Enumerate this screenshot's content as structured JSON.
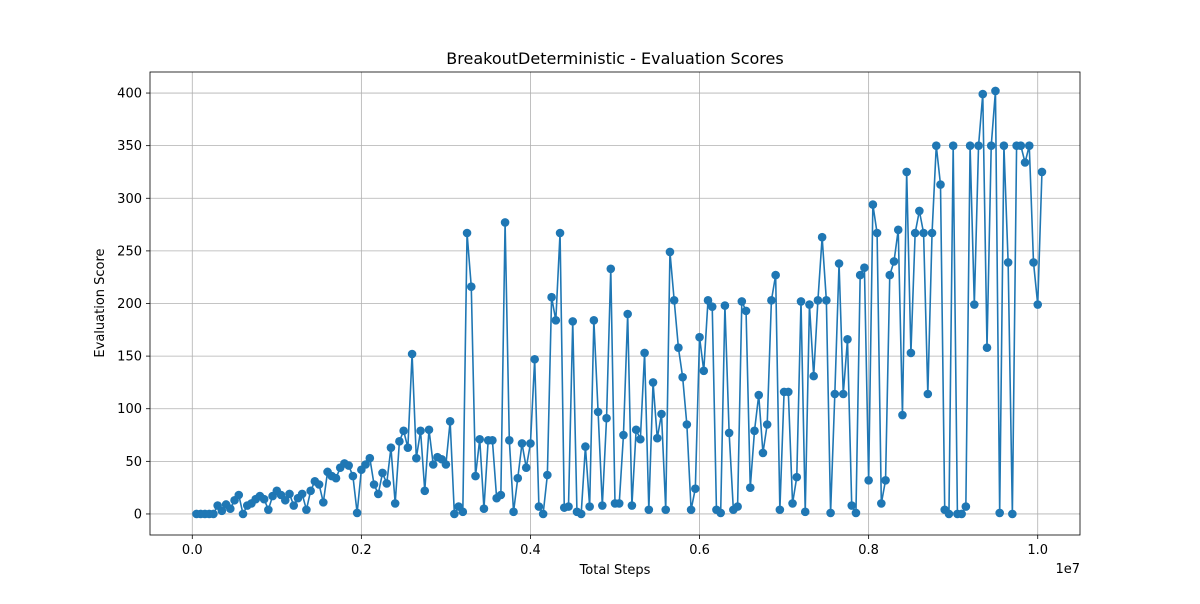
{
  "chart_data": {
    "type": "line",
    "title": "BreakoutDeterministic - Evaluation Scores",
    "xlabel": "Total Steps",
    "ylabel": "Evaluation Score",
    "x_offset_label": "1e7",
    "x_scale": 10000000,
    "xlim": [
      -500000,
      10500000
    ],
    "ylim": [
      -20,
      420
    ],
    "xticks": [
      0,
      2000000,
      4000000,
      6000000,
      8000000,
      10000000
    ],
    "xtick_labels": [
      "0.0",
      "0.2",
      "0.4",
      "0.6",
      "0.8",
      "1.0"
    ],
    "yticks": [
      0,
      50,
      100,
      150,
      200,
      250,
      300,
      350,
      400
    ],
    "ytick_labels": [
      "0",
      "50",
      "100",
      "150",
      "200",
      "250",
      "300",
      "350",
      "400"
    ],
    "grid": true,
    "marker": "circle",
    "color": "#1f77b4",
    "x_start": 50000,
    "x_step": 50000,
    "values": [
      0,
      0,
      0,
      0,
      0,
      8,
      3,
      9,
      5,
      13,
      18,
      0,
      8,
      10,
      14,
      17,
      14,
      4,
      17,
      22,
      18,
      13,
      19,
      8,
      15,
      19,
      4,
      22,
      31,
      28,
      11,
      40,
      36,
      34,
      44,
      48,
      46,
      36,
      1,
      42,
      47,
      53,
      28,
      19,
      39,
      29,
      63,
      10,
      69,
      79,
      63,
      152,
      53,
      79,
      22,
      80,
      47,
      54,
      52,
      47,
      88,
      0,
      7,
      2,
      267,
      216,
      36,
      71,
      5,
      70,
      70,
      15,
      18,
      277,
      70,
      2,
      34,
      67,
      44,
      67,
      147,
      7,
      0,
      37,
      206,
      184,
      267,
      6,
      7,
      183,
      2,
      0,
      64,
      7,
      184,
      97,
      8,
      91,
      233,
      10,
      10,
      75,
      190,
      8,
      80,
      71,
      153,
      4,
      125,
      72,
      95,
      4,
      249,
      203,
      158,
      130,
      85,
      4,
      24,
      168,
      136,
      203,
      197,
      4,
      1,
      198,
      77,
      4,
      7,
      202,
      193,
      25,
      79,
      113,
      58,
      85,
      203,
      227,
      4,
      116,
      116,
      10,
      35,
      202,
      2,
      199,
      131,
      203,
      263,
      203,
      1,
      114,
      238,
      114,
      166,
      8,
      1,
      227,
      234,
      32,
      294,
      267,
      10,
      32,
      227,
      240,
      270,
      94,
      325,
      153,
      267,
      288,
      267,
      114,
      267,
      350,
      313,
      4,
      0,
      350,
      0,
      0,
      7,
      350,
      199,
      350,
      399,
      158,
      350,
      402,
      1,
      350,
      239,
      0,
      350,
      350,
      334,
      350,
      239,
      199,
      325
    ]
  }
}
